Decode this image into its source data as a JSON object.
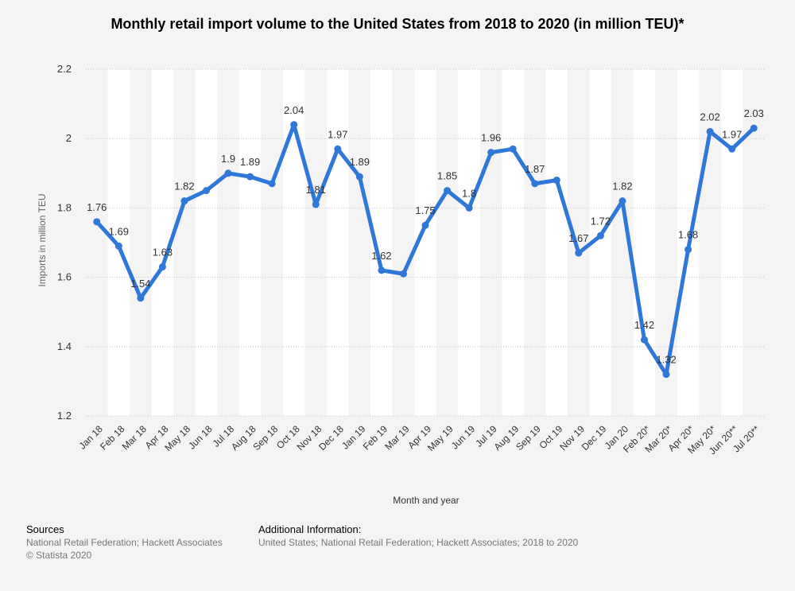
{
  "chart_data": {
    "type": "line",
    "title": "Monthly retail import volume to the United States from 2018 to 2020 (in million TEU)*",
    "xlabel": "Month and year",
    "ylabel": "Imports in million TEU",
    "ylim": [
      1.2,
      2.2
    ],
    "yticks": [
      "1.2",
      "1.4",
      "1.6",
      "1.8",
      "2",
      "2.2"
    ],
    "yticks_values": [
      1.2,
      1.4,
      1.6,
      1.8,
      2.0,
      2.2
    ],
    "categories": [
      "Jan 18",
      "Feb 18",
      "Mar 18",
      "Apr 18",
      "May 18",
      "Jun 18",
      "Jul 18",
      "Aug 18",
      "Sep 18",
      "Oct 18",
      "Nov 18",
      "Dec 18",
      "Jan 19",
      "Feb 19",
      "Mar 19",
      "Apr 19",
      "May 19",
      "Jun 19",
      "Jul 19",
      "Aug 19",
      "Sep 19",
      "Oct 19",
      "Nov 19",
      "Dec 19",
      "Jan 20",
      "Feb 20*",
      "Mar 20*",
      "Apr 20*",
      "May 20*",
      "Jun 20**",
      "Jul 20**"
    ],
    "values": [
      1.76,
      1.69,
      1.54,
      1.63,
      1.82,
      1.85,
      1.9,
      1.89,
      1.87,
      2.04,
      1.81,
      1.97,
      1.89,
      1.62,
      1.61,
      1.75,
      1.85,
      1.8,
      1.96,
      1.97,
      1.87,
      1.88,
      1.67,
      1.72,
      1.82,
      1.42,
      1.32,
      1.68,
      2.02,
      1.97,
      2.03
    ],
    "data_labels": [
      "1.76",
      "1.69",
      "1.54",
      "1.63",
      "1.82",
      "",
      "1.9",
      "1.89",
      "",
      "2.04",
      "1.81",
      "1.97",
      "1.89",
      "1.62",
      "",
      "1.75",
      "1.85",
      "1.8",
      "1.96",
      "",
      "1.87",
      "",
      "1.67",
      "1.72",
      "1.82",
      "1.42",
      "1.32",
      "1.68",
      "2.02",
      "1.97",
      "2.03"
    ],
    "line_color": "#2f78d9",
    "label_color": "#333333",
    "grid": true
  },
  "footer": {
    "sources_label": "Sources",
    "sources_text": "National Retail Federation; Hackett Associates",
    "copyright": "© Statista 2020",
    "additional_label": "Additional Information:",
    "additional_text": "United States; National Retail Federation; Hackett Associates; 2018 to 2020"
  }
}
